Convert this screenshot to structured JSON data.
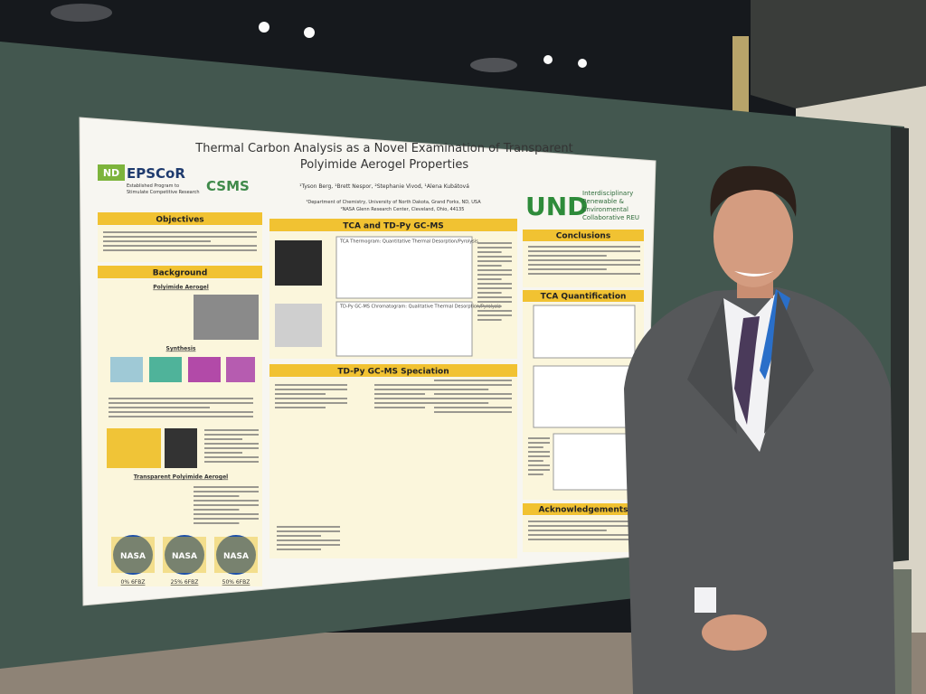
{
  "poster": {
    "title": [
      "Thermal Carbon Analysis as a Novel Examination of Transparent",
      "Polyimide Aerogel Properties"
    ],
    "authors": "¹Tyson Berg, ¹Brett Nespor, ²Stephanie Vivod, ¹Alena Kubátová",
    "affiliations": [
      "¹Department of Chemistry, University of North Dakota, Grand Forks, ND, USA",
      "²NASA Glenn Research Center, Cleveland, Ohio, 44135"
    ],
    "logos": {
      "nd": "ND",
      "epscor": "EPSCoR",
      "epscor_caption": [
        "Established Program to",
        "Stimulate Competitive Research"
      ],
      "csms": "CSMS",
      "und": "UND",
      "reu": [
        "Interdisciplinary",
        "Renewable &",
        "Environmental",
        "Collaborative REU"
      ],
      "nasa": "NASA"
    },
    "sections": {
      "objectives": "Objectives",
      "background": "Background",
      "polyimide_aerogel": "Polyimide Aerogel",
      "synthesis": "Synthesis",
      "transparent": "Transparent Polyimide Aerogel",
      "tca": "TCA and TD-Py GC-MS",
      "tca_thermogram": "TCA Thermogram: Quantitative Thermal Desorption/Pyrolysis",
      "chromatogram": "TD-Py GC-MS Chromatogram: Qualitative Thermal Desorption/Pyrolysis",
      "speciation": "TD-Py GC-MS Speciation",
      "conclusions": "Conclusions",
      "quantification": "TCA Quantification",
      "acknowledgements": "Acknowledgements"
    },
    "samples": [
      "0% 6FBZ",
      "25% 6FBZ",
      "50% 6FBZ"
    ]
  }
}
